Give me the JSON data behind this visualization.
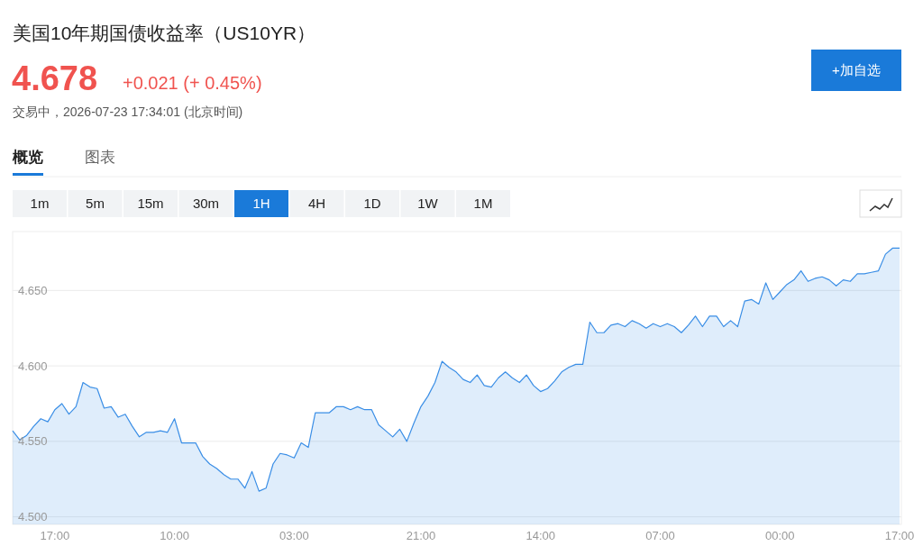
{
  "chart_data": {
    "type": "area",
    "title": "美国10年期国债收益率（US10YR）",
    "subtitle": "4.678",
    "annotations": [
      "+0.021 (+ 0.45%)",
      "交易中，2026-07-23 17:34:01 (北京时间)",
      "概览",
      "图表",
      "1m",
      "5m",
      "15m",
      "30m",
      "1H",
      "4H",
      "1D",
      "1W",
      "1M",
      "+加自选"
    ],
    "categories": [
      null,
      null,
      null,
      null,
      null,
      null,
      "17:00",
      null,
      null,
      null,
      null,
      null,
      null,
      null,
      null,
      null,
      null,
      null,
      null,
      null,
      null,
      null,
      null,
      "10:00",
      null,
      null,
      null,
      null,
      null,
      null,
      null,
      null,
      null,
      null,
      null,
      null,
      null,
      null,
      null,
      null,
      "03:00",
      null,
      null,
      null,
      null,
      null,
      null,
      null,
      null,
      null,
      null,
      null,
      null,
      null,
      null,
      null,
      null,
      null,
      "21:00",
      null,
      null,
      null,
      null,
      null,
      null,
      null,
      null,
      null,
      null,
      null,
      null,
      null,
      null,
      null,
      null,
      "14:00",
      null,
      null,
      null,
      null,
      null,
      null,
      null,
      null,
      null,
      null,
      null,
      null,
      null,
      null,
      null,
      null,
      "07:00",
      null,
      null,
      null,
      null,
      null,
      null,
      null,
      null,
      null,
      null,
      null,
      null,
      null,
      null,
      null,
      null,
      "00:00",
      null,
      null,
      null,
      null,
      null,
      null,
      null,
      null,
      null,
      null,
      null,
      null,
      null,
      null,
      null,
      null,
      "17:00"
    ],
    "values": [
      4.557,
      4.551,
      4.554,
      4.56,
      4.565,
      4.563,
      4.571,
      4.575,
      4.568,
      4.573,
      4.589,
      4.586,
      4.585,
      4.572,
      4.573,
      4.566,
      4.568,
      4.56,
      4.553,
      4.556,
      4.556,
      4.557,
      4.556,
      4.565,
      4.549,
      4.549,
      4.549,
      4.54,
      4.535,
      4.532,
      4.528,
      4.525,
      4.525,
      4.519,
      4.53,
      4.517,
      4.519,
      4.535,
      4.542,
      4.541,
      4.539,
      4.549,
      4.546,
      4.569,
      4.569,
      4.569,
      4.573,
      4.573,
      4.571,
      4.573,
      4.571,
      4.571,
      4.561,
      4.557,
      4.553,
      4.558,
      4.55,
      4.562,
      4.573,
      4.58,
      4.589,
      4.603,
      4.599,
      4.596,
      4.591,
      4.589,
      4.594,
      4.587,
      4.586,
      4.592,
      4.596,
      4.592,
      4.589,
      4.594,
      4.587,
      4.583,
      4.585,
      4.59,
      4.596,
      4.599,
      4.601,
      4.601,
      4.629,
      4.622,
      4.622,
      4.627,
      4.628,
      4.626,
      4.63,
      4.628,
      4.625,
      4.628,
      4.626,
      4.628,
      4.626,
      4.622,
      4.627,
      4.633,
      4.626,
      4.633,
      4.633,
      4.626,
      4.63,
      4.626,
      4.643,
      4.644,
      4.641,
      4.655,
      4.644,
      4.649,
      4.654,
      4.657,
      4.663,
      4.656,
      4.658,
      4.659,
      4.657,
      4.653,
      4.657,
      4.656,
      4.661,
      4.661,
      4.662,
      4.663,
      4.674,
      4.678,
      4.678
    ],
    "color": "#3a8ee6",
    "ylim": [
      4.495,
      4.689
    ],
    "yticks": [
      {
        "value": 4.5,
        "label": "4.500"
      },
      {
        "value": 4.55,
        "label": "4.550"
      },
      {
        "value": 4.6,
        "label": "4.600"
      },
      {
        "value": 4.65,
        "label": "4.650"
      }
    ],
    "grid": "y"
  }
}
